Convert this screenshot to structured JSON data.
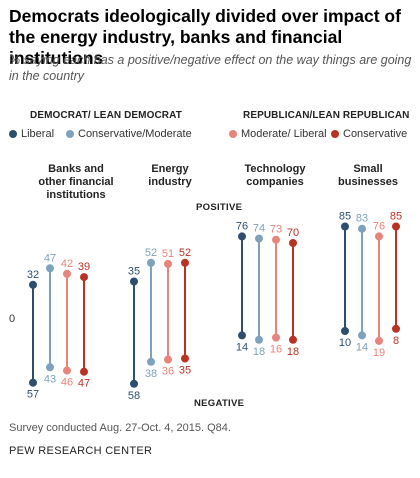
{
  "title": "Democrats ideologically divided over impact of the energy industry, banks and financial institutions",
  "subtitle": "% saying each has a positive/negative effect on the way things are going in the country",
  "legend": {
    "dem_group": "DEMOCRAT/ LEAN DEMOCRAT",
    "rep_group": "REPUBLICAN/LEAN REPUBLICAN",
    "liberal": "Liberal",
    "cons_mod": "Conservative/Moderate",
    "mod_lib": "Moderate/ Liberal",
    "conservative": "Conservative"
  },
  "axis": {
    "positive": "POSITIVE",
    "negative": "NEGATIVE",
    "zero": "0"
  },
  "footer": {
    "source": "Survey conducted Aug. 27-Oct. 4, 2015. Q84.",
    "brand": "PEW RESEARCH CENTER"
  },
  "colors": {
    "liberal": "#2e4e6e",
    "cons_mod": "#7ea2be",
    "mod_lib": "#e8847a",
    "conservative": "#b93324"
  },
  "chart_data": {
    "type": "dumbbell",
    "categories": [
      "Banks and other financial institutions",
      "Energy industry",
      "Technology companies",
      "Small businesses"
    ],
    "series": [
      {
        "name": "Liberal",
        "key": "liberal",
        "positive": [
          32,
          35,
          76,
          85
        ],
        "negative": [
          57,
          58,
          14,
          10
        ]
      },
      {
        "name": "Conservative/Moderate",
        "key": "cons_mod",
        "positive": [
          47,
          52,
          74,
          83
        ],
        "negative": [
          43,
          38,
          18,
          14
        ]
      },
      {
        "name": "Moderate/ Liberal",
        "key": "mod_lib",
        "positive": [
          42,
          51,
          73,
          76
        ],
        "negative": [
          46,
          36,
          16,
          19
        ]
      },
      {
        "name": "Conservative",
        "key": "conservative",
        "positive": [
          39,
          52,
          70,
          85
        ],
        "negative": [
          47,
          35,
          18,
          8
        ]
      }
    ],
    "category_labels": [
      [
        "Banks and",
        "other financial",
        "institutions"
      ],
      [
        "Energy",
        "industry"
      ],
      [
        "Technology",
        "companies"
      ],
      [
        "Small",
        "businesses"
      ]
    ]
  }
}
